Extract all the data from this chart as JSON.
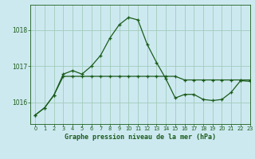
{
  "title": "Graphe pression niveau de la mer (hPa)",
  "background_color": "#cde9f0",
  "grid_color": "#a0ccbb",
  "line_color": "#1a5c1a",
  "xlim": [
    -0.5,
    23
  ],
  "ylim": [
    1015.4,
    1018.7
  ],
  "yticks": [
    1016,
    1017,
    1018
  ],
  "xticks": [
    0,
    1,
    2,
    3,
    4,
    5,
    6,
    7,
    8,
    9,
    10,
    11,
    12,
    13,
    14,
    15,
    16,
    17,
    18,
    19,
    20,
    21,
    22,
    23
  ],
  "series1_x": [
    0,
    1,
    2,
    3,
    4,
    5,
    6,
    7,
    8,
    9,
    10,
    11,
    12,
    13,
    14,
    15,
    16,
    17,
    18,
    19,
    20,
    21,
    22,
    23
  ],
  "series1_y": [
    1015.65,
    1015.85,
    1016.2,
    1016.78,
    1016.88,
    1016.78,
    1017.0,
    1017.3,
    1017.78,
    1018.15,
    1018.35,
    1018.28,
    1017.6,
    1017.1,
    1016.65,
    1016.12,
    1016.22,
    1016.22,
    1016.08,
    1016.05,
    1016.08,
    1016.28,
    1016.6,
    1016.58
  ],
  "series2_x": [
    0,
    1,
    2,
    3,
    4,
    5,
    6,
    7,
    8,
    9,
    10,
    11,
    12,
    13,
    14,
    15,
    16,
    17,
    18,
    19,
    20,
    21,
    22,
    23
  ],
  "series2_y": [
    1015.65,
    1015.85,
    1016.2,
    1016.72,
    1016.72,
    1016.72,
    1016.72,
    1016.72,
    1016.72,
    1016.72,
    1016.72,
    1016.72,
    1016.72,
    1016.72,
    1016.72,
    1016.72,
    1016.62,
    1016.62,
    1016.62,
    1016.62,
    1016.62,
    1016.62,
    1016.62,
    1016.62
  ]
}
